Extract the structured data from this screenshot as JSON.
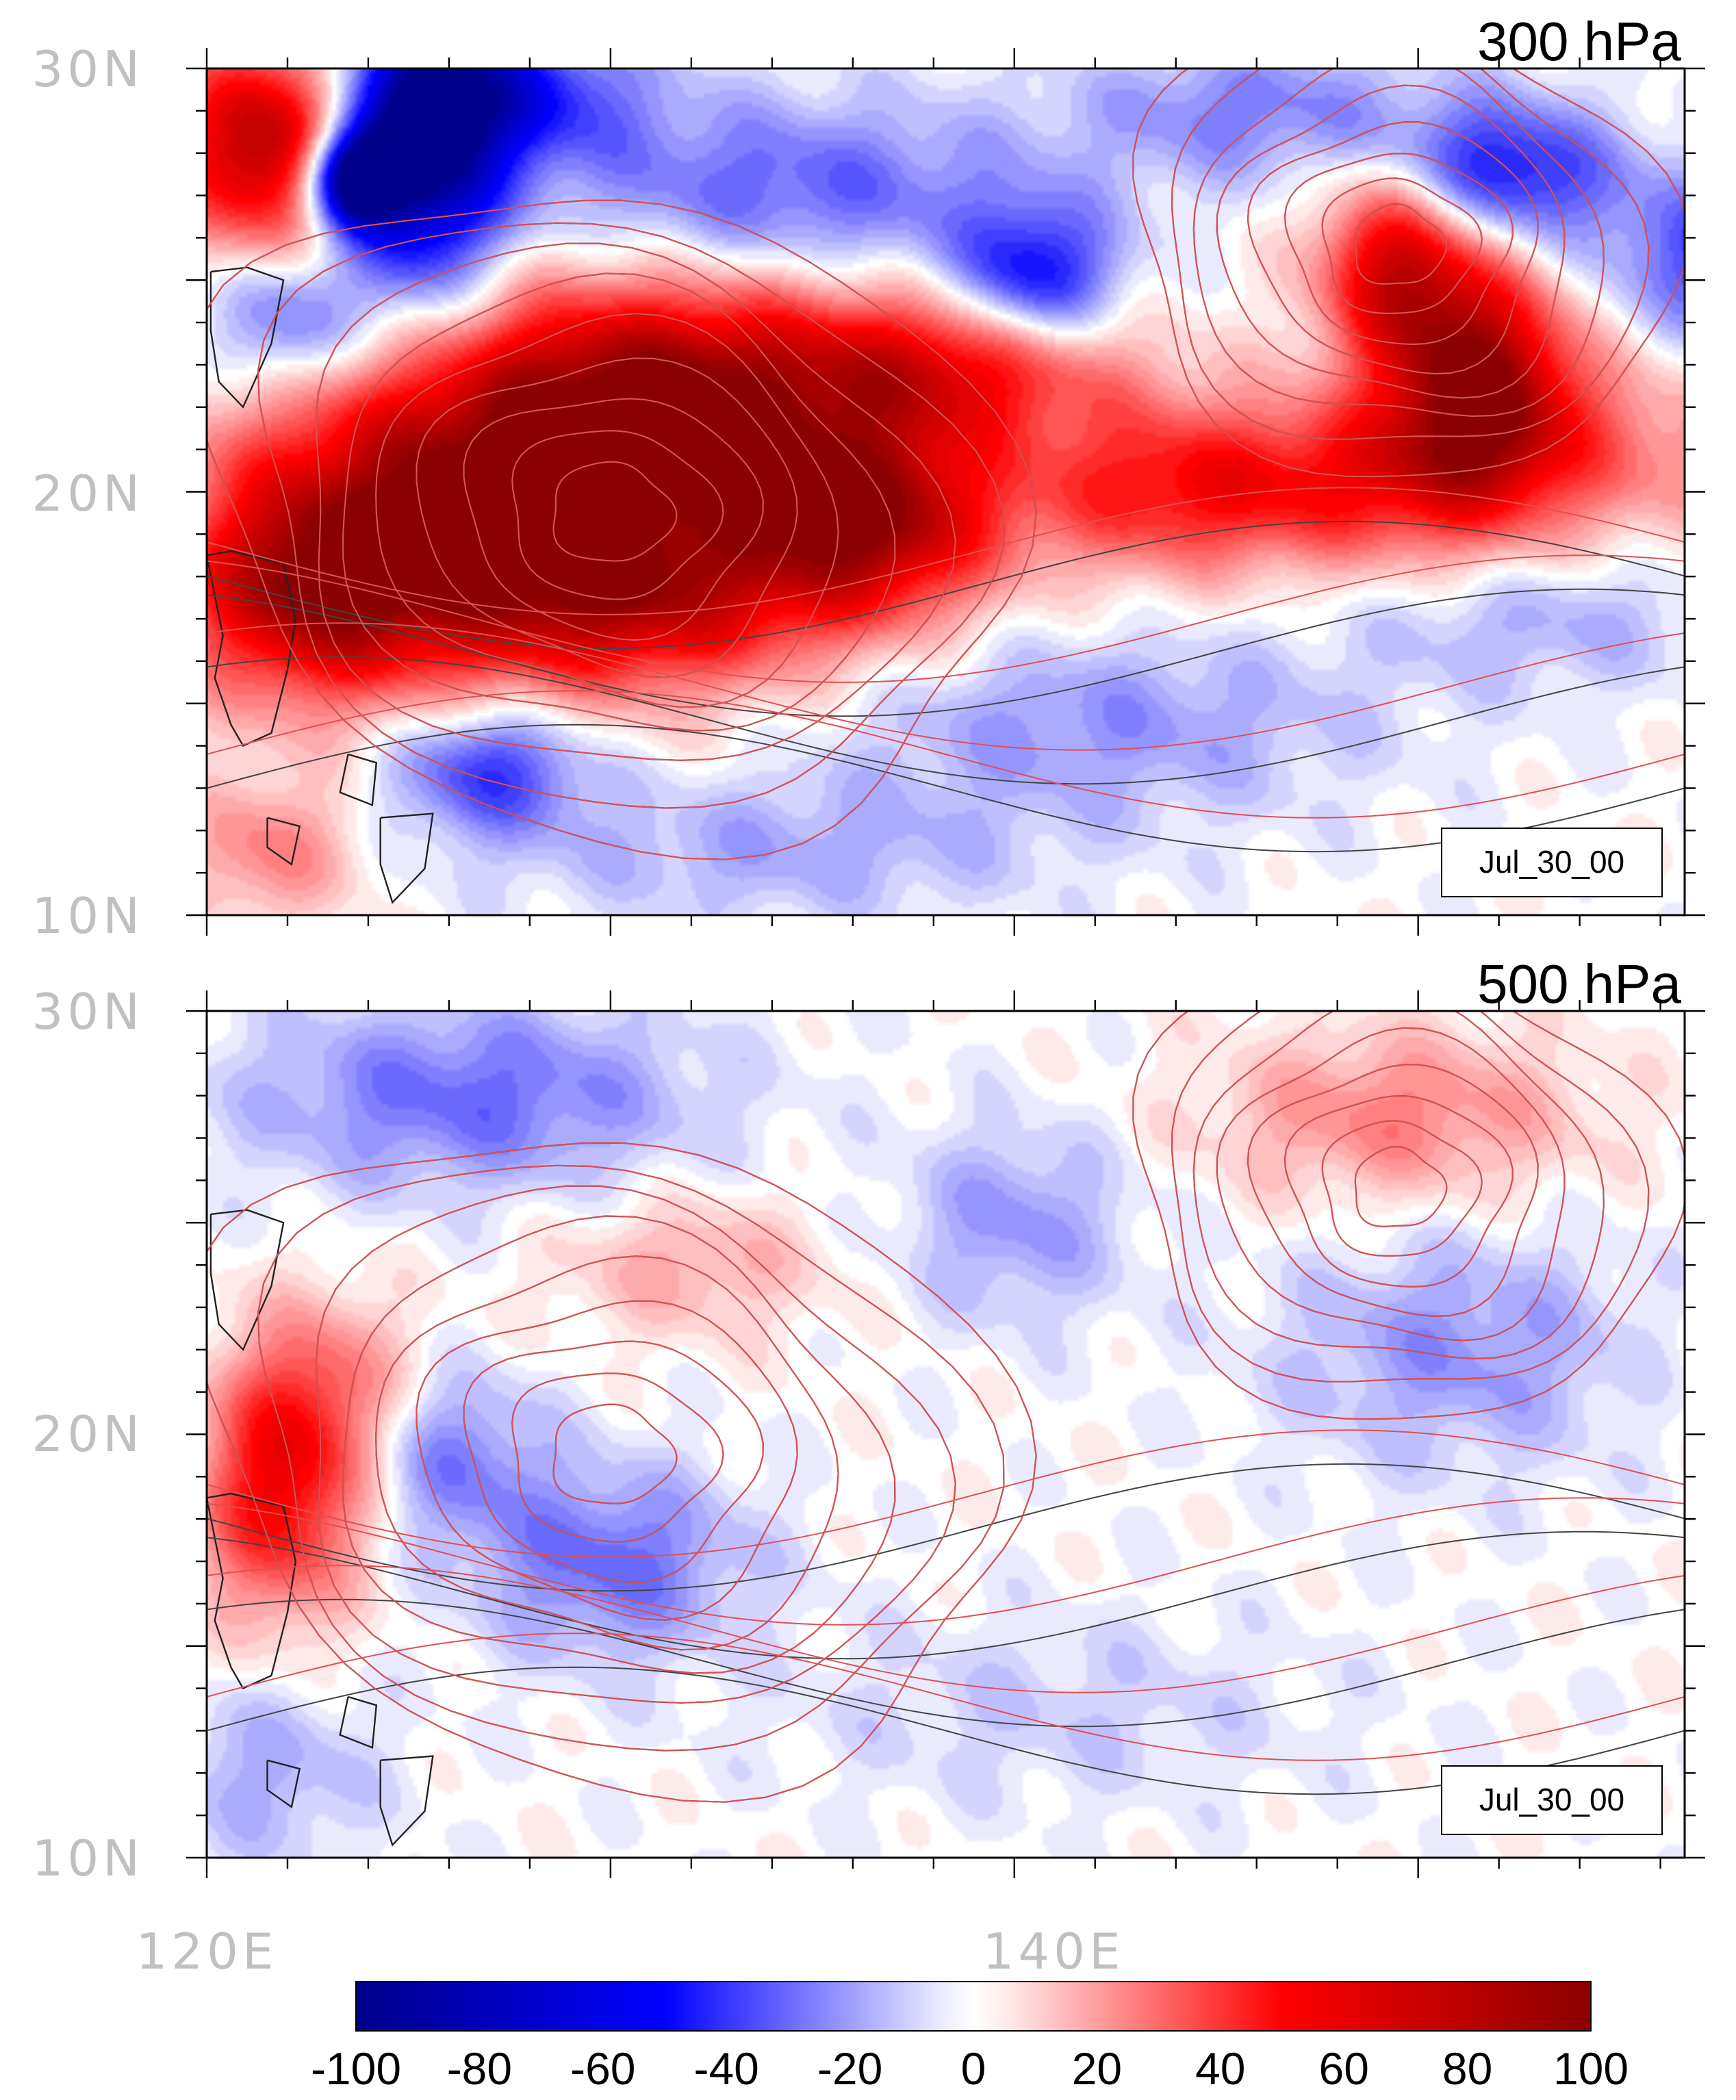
{
  "panels": [
    {
      "id": "p300",
      "title": "300 hPa",
      "time_label": "Jul_30_00",
      "lat_labels": [
        "30N",
        "20N",
        "10N"
      ],
      "blobs": [
        {
          "lon": 121.5,
          "lat": 28.2,
          "rlon": 2.2,
          "rlat": 2.2,
          "v": 90
        },
        {
          "lon": 123.6,
          "lat": 27.4,
          "rlon": 1.0,
          "rlat": 1.0,
          "v": -120
        },
        {
          "lon": 125.3,
          "lat": 28.0,
          "rlon": 1.8,
          "rlat": 3.2,
          "v": -100
        },
        {
          "lon": 127.3,
          "lat": 29.4,
          "rlon": 3.0,
          "rlat": 1.5,
          "v": -55
        },
        {
          "lon": 122.0,
          "lat": 24.0,
          "rlon": 1.8,
          "rlat": 1.5,
          "v": -45
        },
        {
          "lon": 126.5,
          "lat": 19.5,
          "rlon": 5.5,
          "rlat": 3.2,
          "v": 90
        },
        {
          "lon": 122.5,
          "lat": 17.5,
          "rlon": 2.8,
          "rlat": 2.2,
          "v": 60
        },
        {
          "lon": 132.0,
          "lat": 22.5,
          "rlon": 5.5,
          "rlat": 2.4,
          "v": 85
        },
        {
          "lon": 136.5,
          "lat": 19.3,
          "rlon": 2.8,
          "rlat": 2.0,
          "v": 80
        },
        {
          "lon": 131.0,
          "lat": 17.5,
          "rlon": 4.5,
          "rlat": 2.0,
          "v": 55
        },
        {
          "lon": 139.0,
          "lat": 23.0,
          "rlon": 3.5,
          "rlat": 1.5,
          "v": 45
        },
        {
          "lon": 151.5,
          "lat": 22.5,
          "rlon": 2.2,
          "rlat": 2.5,
          "v": 95
        },
        {
          "lon": 149.5,
          "lat": 25.5,
          "rlon": 1.8,
          "rlat": 2.0,
          "v": 70
        },
        {
          "lon": 147.5,
          "lat": 20.2,
          "rlon": 4.5,
          "rlat": 1.8,
          "v": 55
        },
        {
          "lon": 143.0,
          "lat": 20.0,
          "rlon": 2.8,
          "rlat": 1.8,
          "v": 30
        },
        {
          "lon": 156.0,
          "lat": 21.0,
          "rlon": 4.0,
          "rlat": 2.0,
          "v": 25
        },
        {
          "lon": 134.5,
          "lat": 27.0,
          "rlon": 5.5,
          "rlat": 2.0,
          "v": -40
        },
        {
          "lon": 140.5,
          "lat": 25.0,
          "rlon": 1.8,
          "rlat": 1.5,
          "v": -60
        },
        {
          "lon": 152.0,
          "lat": 27.5,
          "rlon": 2.5,
          "rlat": 1.5,
          "v": -60
        },
        {
          "lon": 158.0,
          "lat": 25.5,
          "rlon": 3.0,
          "rlat": 1.8,
          "v": -50
        },
        {
          "lon": 146.0,
          "lat": 29.0,
          "rlon": 4.0,
          "rlat": 1.5,
          "v": -30
        },
        {
          "lon": 127.0,
          "lat": 13.5,
          "rlon": 2.2,
          "rlat": 1.4,
          "v": -50
        },
        {
          "lon": 142.0,
          "lat": 14.5,
          "rlon": 6.0,
          "rlat": 2.0,
          "v": -25
        },
        {
          "lon": 153.0,
          "lat": 17.0,
          "rlon": 4.0,
          "rlat": 1.5,
          "v": -20
        },
        {
          "lon": 134.0,
          "lat": 11.5,
          "rlon": 6.0,
          "rlat": 1.5,
          "v": -20
        },
        {
          "lon": 121.5,
          "lat": 11.5,
          "rlon": 2.0,
          "rlat": 1.5,
          "v": 30
        }
      ]
    },
    {
      "id": "p500",
      "title": "500 hPa",
      "time_label": "Jul_30_00",
      "lat_labels": [
        "30N",
        "20N",
        "10N"
      ],
      "blobs": [
        {
          "lon": 126.5,
          "lat": 28.0,
          "rlon": 5.0,
          "rlat": 2.0,
          "v": -35
        },
        {
          "lon": 121.8,
          "lat": 18.5,
          "rlon": 1.8,
          "rlat": 2.6,
          "v": 60
        },
        {
          "lon": 123.0,
          "lat": 21.0,
          "rlon": 2.0,
          "rlat": 2.0,
          "v": 30
        },
        {
          "lon": 130.0,
          "lat": 17.0,
          "rlon": 3.0,
          "rlat": 2.0,
          "v": -35
        },
        {
          "lon": 126.0,
          "lat": 19.5,
          "rlon": 2.0,
          "rlat": 1.8,
          "v": -30
        },
        {
          "lon": 132.0,
          "lat": 24.0,
          "rlon": 3.0,
          "rlat": 1.5,
          "v": 20
        },
        {
          "lon": 149.5,
          "lat": 27.5,
          "rlon": 4.0,
          "rlat": 1.8,
          "v": 30
        },
        {
          "lon": 151.0,
          "lat": 22.0,
          "rlon": 4.0,
          "rlat": 2.5,
          "v": -25
        },
        {
          "lon": 140.0,
          "lat": 25.0,
          "rlon": 2.5,
          "rlat": 2.0,
          "v": -25
        },
        {
          "lon": 141.0,
          "lat": 13.5,
          "rlon": 6.0,
          "rlat": 2.0,
          "v": -12
        },
        {
          "lon": 121.5,
          "lat": 12.0,
          "rlon": 2.5,
          "rlat": 2.0,
          "v": -20
        },
        {
          "lon": 159.0,
          "lat": 21.5,
          "rlon": 2.0,
          "rlat": 1.5,
          "v": 15
        }
      ]
    }
  ],
  "x_axis_labels": [
    {
      "lon": 120,
      "text": "120E"
    },
    {
      "lon": 140,
      "text": "140E"
    }
  ],
  "colorbar": {
    "min": -100,
    "max": 100,
    "tick_labels": [
      "-100",
      "-80",
      "-60",
      "-40",
      "-20",
      "0",
      "20",
      "40",
      "60",
      "80",
      "100"
    ]
  },
  "colors": {
    "negative_max": "#00008b",
    "negative_mid": "#0000ff",
    "neutral": "#ffffff",
    "positive_mid": "#ff0000",
    "positive_max": "#8b0000",
    "black_contour": "#444444",
    "red_contour": "#e05050",
    "coastline": "#222222"
  },
  "contours": {
    "centers": [
      {
        "lon": 130.0,
        "lat": 19.5
      },
      {
        "lon": 149.5,
        "lat": 25.8
      }
    ]
  }
}
